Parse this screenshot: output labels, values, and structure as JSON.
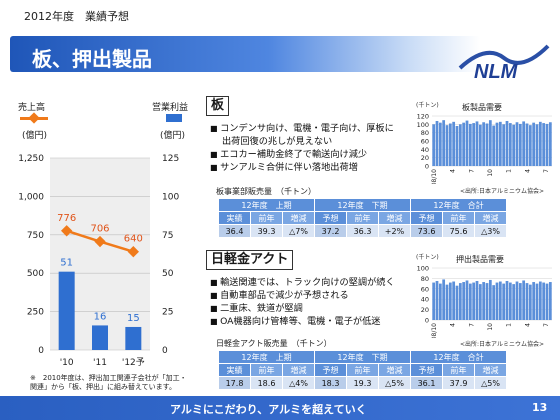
{
  "header": {
    "label": "2012年度　業績予想",
    "title": "板、押出製品",
    "logo_text": "NLM"
  },
  "left_chart": {
    "left_axis_title": "売上高",
    "left_axis_unit": "(億円)",
    "right_axis_title": "営業利益",
    "right_axis_unit": "(億円)",
    "left_ticks": [
      "1,250",
      "1,000",
      "750",
      "500",
      "250",
      "0"
    ],
    "right_ticks": [
      "125",
      "100",
      "75",
      "50",
      "25",
      "0"
    ],
    "note": "※　2010年度は、押出加工関連子会社が「加工・\n関連」から「板、押出」に組み替えています。"
  },
  "chart_data": [
    {
      "type": "bar",
      "categories": [
        "'10",
        "'11",
        "'12予"
      ],
      "series": [
        {
          "name": "売上高",
          "kind": "line",
          "axis": "left",
          "values": [
            776,
            706,
            640
          ],
          "color": "#f07a1a"
        },
        {
          "name": "営業利益",
          "kind": "bar",
          "axis": "right",
          "values": [
            51,
            16,
            15
          ],
          "color": "#2f6fd0"
        }
      ],
      "ylim_left": [
        0,
        1250
      ],
      "ylim_right": [
        0,
        125
      ],
      "grid": true
    },
    {
      "type": "bar",
      "title": "板製品需要",
      "ylabel": "(千トン)",
      "yticks": [
        "120",
        "100",
        "80",
        "60",
        "40",
        "20",
        "0"
      ],
      "ylim": [
        0,
        120
      ],
      "x_ticks": [
        "08/10",
        "4",
        "7",
        "10",
        "1",
        "4",
        "7"
      ],
      "values": [
        100,
        108,
        104,
        110,
        98,
        102,
        106,
        96,
        100,
        104,
        109,
        101,
        103,
        107,
        99,
        105,
        102,
        110,
        97,
        104,
        106,
        100,
        108,
        103,
        99,
        105,
        101,
        107,
        102,
        98,
        104,
        100,
        106,
        103,
        101,
        105
      ],
      "source": "<出所:日本アルミニウム協会>"
    },
    {
      "type": "bar",
      "title": "押出製品需要",
      "ylabel": "(千トン)",
      "yticks": [
        "100",
        "80",
        "60",
        "40",
        "20",
        "0"
      ],
      "ylim": [
        0,
        100
      ],
      "x_ticks": [
        "08/10",
        "4",
        "7",
        "10",
        "1",
        "4",
        "7"
      ],
      "values": [
        72,
        75,
        70,
        78,
        68,
        72,
        74,
        66,
        71,
        73,
        76,
        70,
        72,
        75,
        69,
        73,
        71,
        77,
        67,
        72,
        74,
        70,
        75,
        72,
        69,
        74,
        71,
        76,
        71,
        68,
        73,
        70,
        74,
        72,
        70,
        73
      ],
      "source": "<出所:日本アルミニウム協会>"
    }
  ],
  "section_ita": {
    "heading": "板",
    "bullets": [
      {
        "text": "コンデンサ向け、電機・電子向け、厚板に",
        "cont": false
      },
      {
        "text": "出荷回復の兆しが見えない",
        "cont": true
      },
      {
        "text": "エコカー補助金終了で輸送向け減少",
        "cont": false
      },
      {
        "text": "サンアルミ合併に伴い落地出荷増",
        "cont": false
      }
    ],
    "table_title": "板事業部販売量　（千トン）",
    "table": {
      "groups": [
        "12年度　上期",
        "12年度　下期",
        "12年度　合計"
      ],
      "subheads": [
        "実績",
        "前年",
        "増減",
        "予想",
        "前年",
        "増減",
        "予想",
        "前年",
        "増減"
      ],
      "values": [
        "36.4",
        "39.3",
        "△7%",
        "37.2",
        "36.3",
        "+2%",
        "73.6",
        "75.6",
        "△3%"
      ]
    }
  },
  "section_extrusion": {
    "heading": "日軽金アクト",
    "bullets": [
      {
        "text": "輸送関連では、トラック向けの堅調が続く",
        "cont": false
      },
      {
        "text": "自動車部品で減少が予想される",
        "cont": false
      },
      {
        "text": "二重床、鉄道が堅調",
        "cont": false
      },
      {
        "text": "OA機器向け管棒等、電機・電子が低迷",
        "cont": false
      }
    ],
    "table_title": "日軽金アクト販売量　（千トン）",
    "table": {
      "groups": [
        "12年度　上期",
        "12年度　下期",
        "12年度　合計"
      ],
      "subheads": [
        "実績",
        "前年",
        "増減",
        "予想",
        "前年",
        "増減",
        "予想",
        "前年",
        "増減"
      ],
      "values": [
        "17.8",
        "18.6",
        "△4%",
        "18.3",
        "19.3",
        "△5%",
        "36.1",
        "37.9",
        "△5%"
      ]
    }
  },
  "footer": {
    "slogan": "アルミにこだわり、アルミを超えていく",
    "page": "13"
  }
}
